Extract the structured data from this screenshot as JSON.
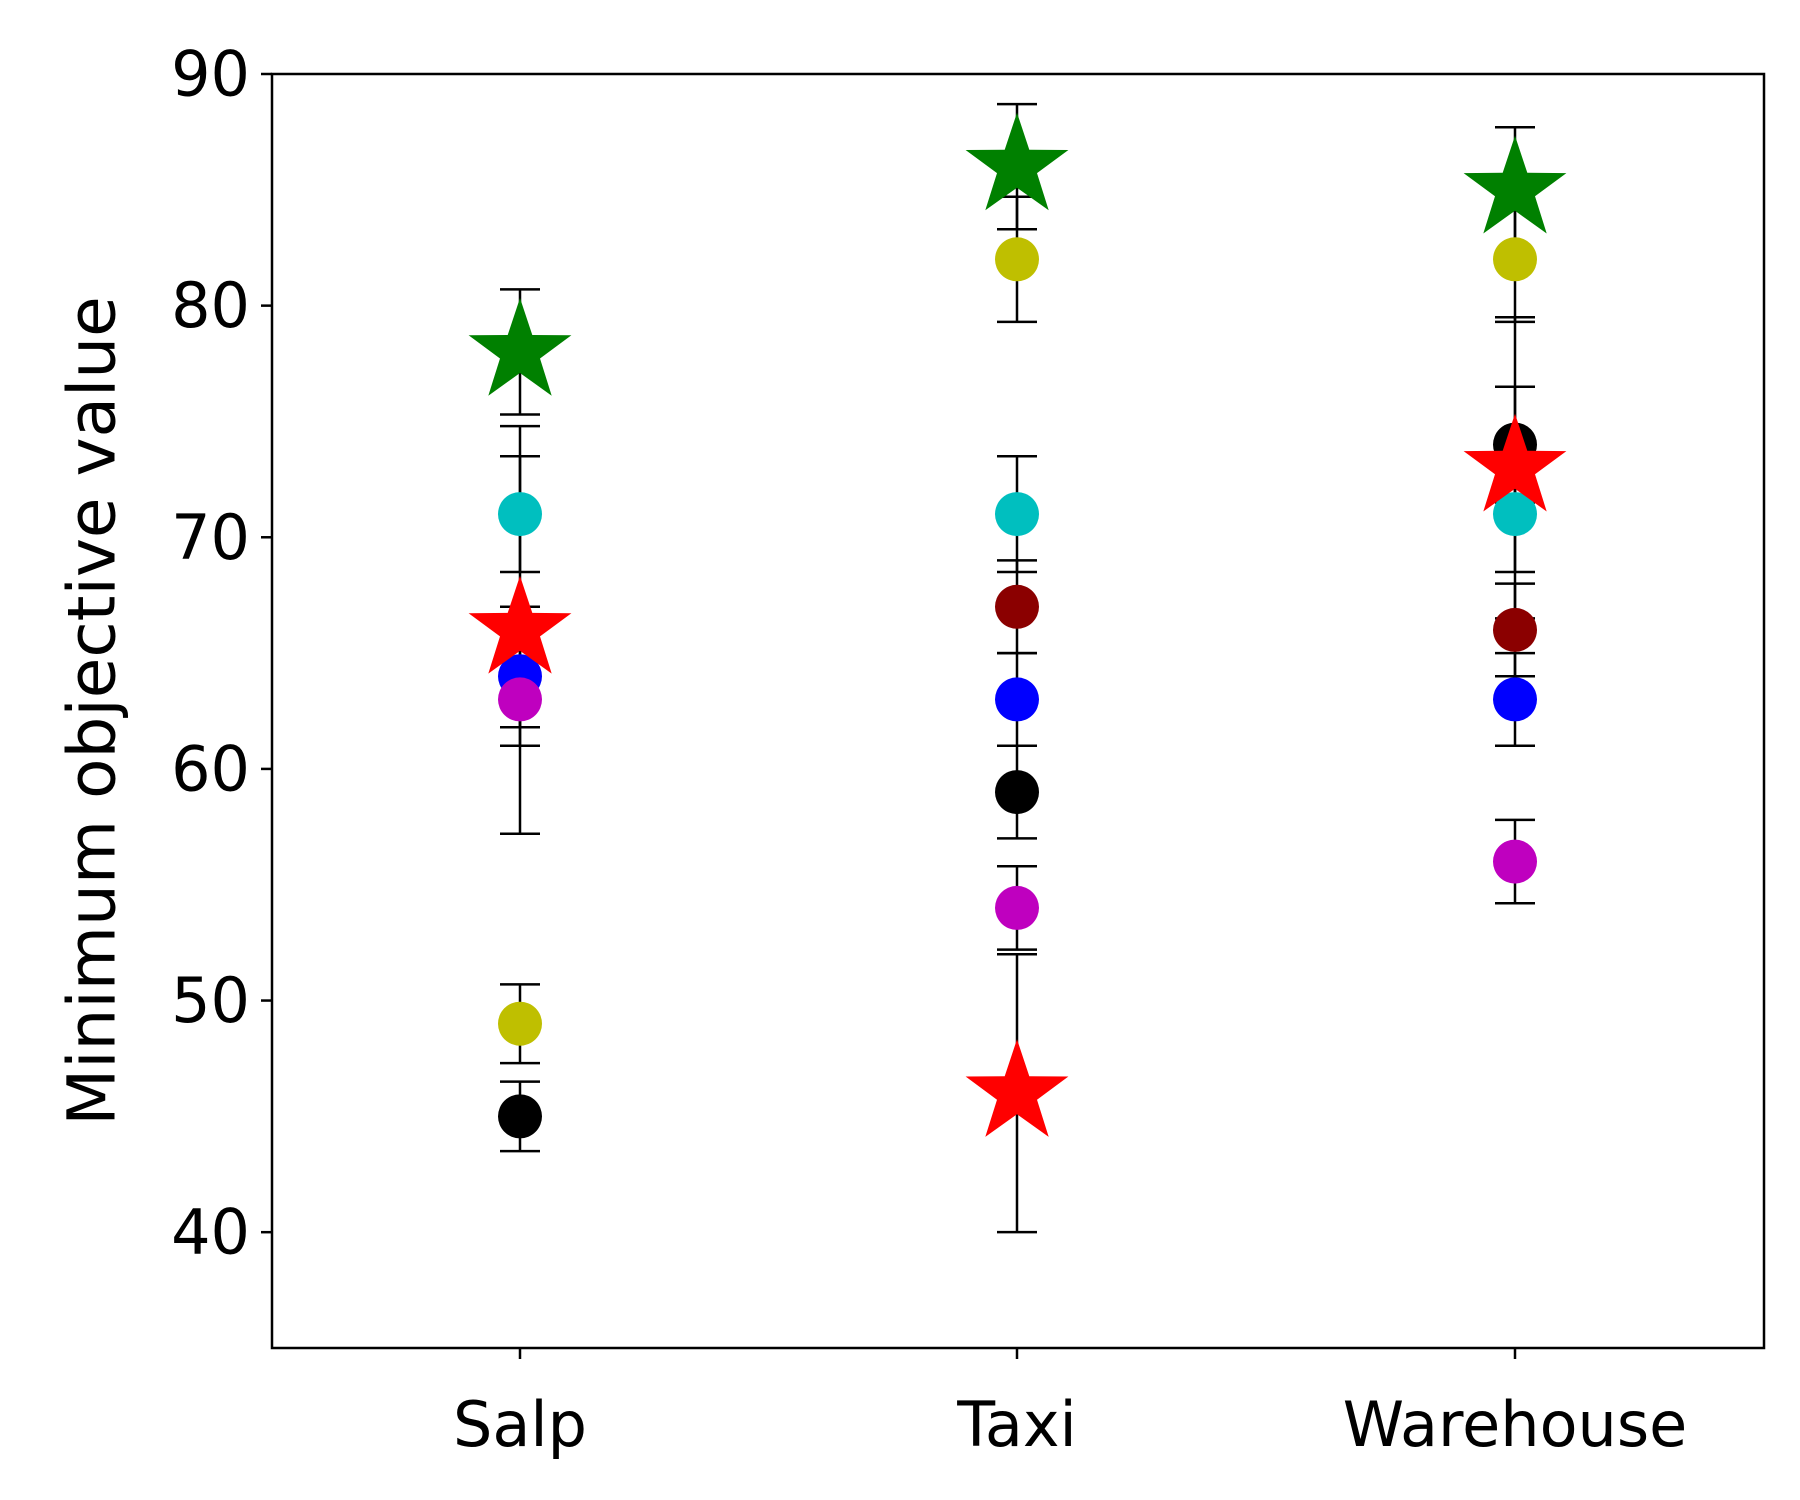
{
  "chart_data": {
    "type": "scatter",
    "title": "",
    "xlabel": "",
    "ylabel": "Minimum objective value",
    "categories": [
      "Salp",
      "Taxi",
      "Warehouse"
    ],
    "ylim": [
      35,
      90
    ],
    "yticks": [
      40,
      50,
      60,
      70,
      80,
      90
    ],
    "grid": false,
    "legend": "none",
    "series": [
      {
        "marker": "circle",
        "color": "#bfbf00",
        "values": [
          49,
          82,
          82
        ],
        "errors": [
          1.7,
          2.7,
          2.7
        ]
      },
      {
        "marker": "circle",
        "color": "#000000",
        "values": [
          45,
          59,
          74
        ],
        "errors": [
          1.5,
          2.0,
          2.5
        ]
      },
      {
        "marker": "circle",
        "color": "#00bfbf",
        "values": [
          71,
          71,
          71
        ],
        "errors": [
          2.5,
          2.5,
          2.5
        ]
      },
      {
        "marker": "circle",
        "color": "#8b0000",
        "values": [
          null,
          67,
          66
        ],
        "errors": [
          null,
          2.0,
          2.0
        ]
      },
      {
        "marker": "circle",
        "color": "#0000ff",
        "values": [
          64,
          63,
          63
        ],
        "errors": [
          3.0,
          2.0,
          2.0
        ]
      },
      {
        "marker": "circle",
        "color": "#bf00bf",
        "values": [
          63,
          54,
          56
        ],
        "errors": [
          1.2,
          1.8,
          1.8
        ]
      },
      {
        "marker": "star",
        "color": "#008000",
        "values": [
          78,
          86,
          85
        ],
        "errors": [
          2.7,
          2.7,
          2.7
        ]
      },
      {
        "marker": "star",
        "color": "#ff0000",
        "values": [
          66,
          46,
          73
        ],
        "errors": [
          8.8,
          6.0,
          6.5
        ]
      }
    ]
  }
}
